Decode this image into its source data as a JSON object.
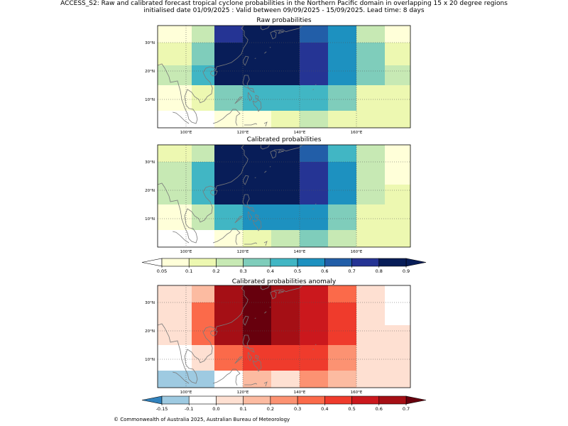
{
  "header": {
    "line1": "ACCESS_S2: Raw and calibrated forecast tropical cyclone probabilities in the Northern Pacific domain in overlapping 15 x 20 degree regions",
    "line2": "initialised date 01/09/2025 :  Valid between 09/09/2025 - 15/09/2025. Lead time: 8 days"
  },
  "panels": {
    "raw": {
      "title": "Raw probabilities",
      "grid": [
        [
          0.05,
          0.2,
          0.7,
          0.8,
          0.8,
          0.6,
          0.5,
          0.2,
          0.05
        ],
        [
          0.1,
          0.3,
          0.8,
          0.9,
          0.9,
          0.7,
          0.5,
          0.3,
          0.1
        ],
        [
          0.2,
          0.4,
          0.8,
          0.9,
          0.9,
          0.7,
          0.5,
          0.3,
          0.2
        ],
        [
          0.05,
          0.1,
          0.3,
          0.4,
          0.4,
          0.4,
          0.3,
          0.1,
          0.1
        ],
        [
          0,
          0,
          0.05,
          0.05,
          0.1,
          0.2,
          0.1,
          0.1,
          0.1
        ]
      ]
    },
    "cal": {
      "title": "Calibrated probabilities",
      "grid": [
        [
          0.1,
          0.2,
          0.8,
          0.9,
          0.9,
          0.6,
          0.4,
          0.2,
          0.05
        ],
        [
          0.2,
          0.4,
          0.9,
          0.9,
          0.9,
          0.7,
          0.5,
          0.2,
          0.05
        ],
        [
          0.2,
          0.4,
          0.9,
          0.9,
          0.9,
          0.7,
          0.5,
          0.2,
          0.1
        ],
        [
          0.05,
          0.2,
          0.4,
          0.5,
          0.5,
          0.5,
          0.3,
          0.1,
          0.1
        ],
        [
          0,
          0,
          0.05,
          0.1,
          0.2,
          0.3,
          0.2,
          0.1,
          0.1
        ]
      ]
    },
    "anom": {
      "title": "Calibrated probabilities anomaly",
      "grid": [
        [
          0,
          0.1,
          0.6,
          0.7,
          0.6,
          0.5,
          0.3,
          0.05,
          -0.1
        ],
        [
          0.05,
          0.3,
          0.6,
          0.7,
          0.6,
          0.5,
          0.4,
          0.05,
          -0.1
        ],
        [
          0.05,
          0.3,
          0.6,
          0.7,
          0.6,
          0.5,
          0.4,
          0.05,
          0
        ],
        [
          -0.1,
          0,
          0.3,
          0.4,
          0.4,
          0.4,
          0.2,
          0,
          0
        ],
        [
          -0.15,
          -0.15,
          -0.1,
          0.1,
          0.05,
          0.2,
          0.1,
          0,
          0
        ]
      ]
    }
  },
  "map_axes": {
    "lon_ticks": [
      "100°E",
      "120°E",
      "140°E",
      "160°E"
    ],
    "lat_ticks": [
      "30°N",
      "20°N",
      "10°N"
    ]
  },
  "colorbar_prob": {
    "ticks": [
      "0.05",
      "0.1",
      "0.2",
      "0.3",
      "0.4",
      "0.5",
      "0.6",
      "0.7",
      "0.8",
      "0.9"
    ],
    "colors": [
      "#ffffd9",
      "#edf8b1",
      "#c7e9b4",
      "#7fcdbb",
      "#41b6c4",
      "#1d91c0",
      "#225ea8",
      "#253494",
      "#081d58"
    ],
    "under": "#ffffff",
    "over": "#081d58"
  },
  "colorbar_anom": {
    "ticks": [
      "-0.15",
      "-0.1",
      "0.0",
      "0.1",
      "0.2",
      "0.3",
      "0.4",
      "0.5",
      "0.6",
      "0.7"
    ],
    "colors": [
      "#9ecae1",
      "#ffffff",
      "#fee0d2",
      "#fcbba1",
      "#fc9272",
      "#fb6a4a",
      "#ef3b2c",
      "#cb181d",
      "#a50f15"
    ],
    "under": "#3182bd",
    "over": "#67000d"
  },
  "footer": "© Commonwealth of Australia 2025, Australian Bureau of Meteorology"
}
